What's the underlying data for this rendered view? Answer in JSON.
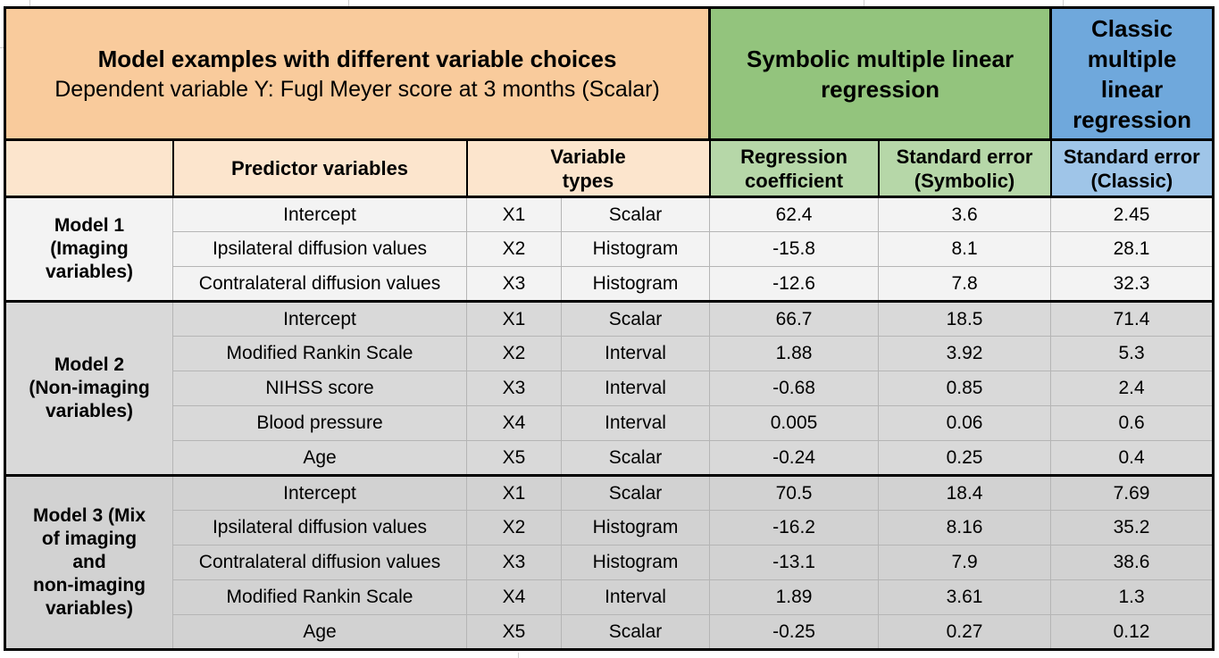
{
  "colors": {
    "title_band": "#f9cb9c",
    "header_band": "#fce5cd",
    "symbolic_dark": "#93c47d",
    "symbolic_light": "#b6d7a8",
    "classic_dark": "#6fa8dc",
    "classic_light": "#9fc5e8",
    "model1_bg": "#f3f3f3",
    "model2_bg": "#d9d9d9",
    "model3_bg": "#d2d2d2",
    "grid_gray": "#b5b5b5",
    "border_black": "#000000"
  },
  "display": {
    "symbolic_header": "Symbolic multiple linear\nregression",
    "classic_header": "Classic\nmultiple\nlinear\nregression",
    "predictor_variables": "Predictor variables",
    "variable_types": "Variable\ntypes",
    "regression_coefficient": "Regression\ncoefficient",
    "se_symbolic": "Standard error\n(Symbolic)",
    "se_classic": "Standard error\n(Classic)",
    "model_labels": [
      "Model 1\n(Imaging\nvariables)",
      "Model 2\n(Non-imaging\nvariables)",
      "Model 3 (Mix\nof imaging\nand\nnon-imaging\nvariables)"
    ]
  },
  "chart_data": {
    "type": "table",
    "title": "Model examples with different variable choices",
    "subtitle": "Dependent variable Y: Fugl Meyer score at 3 months (Scalar)",
    "section_headers": {
      "symbolic": "Symbolic multiple linear regression",
      "classic": "Classic multiple linear regression"
    },
    "column_headers": [
      "Predictor variables",
      "Variable types",
      "Regression coefficient",
      "Standard error (Symbolic)",
      "Standard error (Classic)"
    ],
    "models": [
      {
        "name": "Model 1 (Imaging variables)",
        "rows": [
          {
            "predictor": "Intercept",
            "x": "X1",
            "type": "Scalar",
            "coef": "62.4",
            "se_symbolic": "3.6",
            "se_classic": "2.45"
          },
          {
            "predictor": "Ipsilateral diffusion values",
            "x": "X2",
            "type": "Histogram",
            "coef": "-15.8",
            "se_symbolic": "8.1",
            "se_classic": "28.1"
          },
          {
            "predictor": "Contralateral diffusion values",
            "x": "X3",
            "type": "Histogram",
            "coef": "-12.6",
            "se_symbolic": "7.8",
            "se_classic": "32.3"
          }
        ]
      },
      {
        "name": "Model 2 (Non-imaging variables)",
        "rows": [
          {
            "predictor": "Intercept",
            "x": "X1",
            "type": "Scalar",
            "coef": "66.7",
            "se_symbolic": "18.5",
            "se_classic": "71.4"
          },
          {
            "predictor": "Modified Rankin Scale",
            "x": "X2",
            "type": "Interval",
            "coef": "1.88",
            "se_symbolic": "3.92",
            "se_classic": "5.3"
          },
          {
            "predictor": "NIHSS score",
            "x": "X3",
            "type": "Interval",
            "coef": "-0.68",
            "se_symbolic": "0.85",
            "se_classic": "2.4"
          },
          {
            "predictor": "Blood pressure",
            "x": "X4",
            "type": "Interval",
            "coef": "0.005",
            "se_symbolic": "0.06",
            "se_classic": "0.6"
          },
          {
            "predictor": "Age",
            "x": "X5",
            "type": "Scalar",
            "coef": "-0.24",
            "se_symbolic": "0.25",
            "se_classic": "0.4"
          }
        ]
      },
      {
        "name": "Model 3 (Mix of imaging and non-imaging variables)",
        "rows": [
          {
            "predictor": "Intercept",
            "x": "X1",
            "type": "Scalar",
            "coef": "70.5",
            "se_symbolic": "18.4",
            "se_classic": "7.69"
          },
          {
            "predictor": "Ipsilateral diffusion values",
            "x": "X2",
            "type": "Histogram",
            "coef": "-16.2",
            "se_symbolic": "8.16",
            "se_classic": "35.2"
          },
          {
            "predictor": "Contralateral diffusion values",
            "x": "X3",
            "type": "Histogram",
            "coef": "-13.1",
            "se_symbolic": "7.9",
            "se_classic": "38.6"
          },
          {
            "predictor": "Modified Rankin Scale",
            "x": "X4",
            "type": "Interval",
            "coef": "1.89",
            "se_symbolic": "3.61",
            "se_classic": "1.3"
          },
          {
            "predictor": "Age",
            "x": "X5",
            "type": "Scalar",
            "coef": "-0.25",
            "se_symbolic": "0.27",
            "se_classic": "0.12"
          }
        ]
      }
    ]
  }
}
